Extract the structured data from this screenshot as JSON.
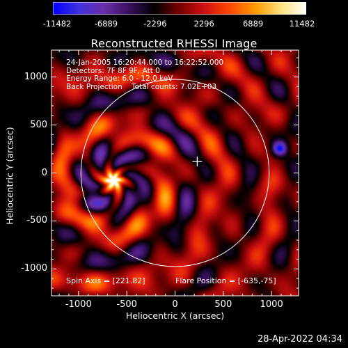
{
  "title": "Reconstructed RHESSI Image",
  "colorbar": {
    "ticks": [
      "-11482",
      "-6889",
      "-2296",
      "2296",
      "6889",
      "11482"
    ],
    "stops": [
      "#0000ff",
      "#4030e0",
      "#6a2fa8",
      "#3a1060",
      "#000000",
      "#7a0000",
      "#d01010",
      "#ff4a00",
      "#ff9a00",
      "#ffe27a",
      "#ffffff"
    ]
  },
  "info_lines": [
    "24-Jan-2005 16:20:44.000 to 16:22:52.000",
    "Detectors: 7F 8F 9F, Att 0",
    "Energy Range: 6.0 - 12.0 keV",
    "Back Projection    Total counts: 7.02E+03"
  ],
  "spin_axis": "Spin Axis = [221.82]",
  "flare_position": "Flare Position = [-635,-75]",
  "xlabel": "Heliocentric X (arcsec)",
  "ylabel": "Heliocentric Y (arcsec)",
  "x_ticks": [
    {
      "value": -1000,
      "label": "-1000"
    },
    {
      "value": -500,
      "label": "-500"
    },
    {
      "value": 0,
      "label": "0"
    },
    {
      "value": 500,
      "label": "500"
    },
    {
      "value": 1000,
      "label": "1000"
    }
  ],
  "y_ticks": [
    {
      "value": 1000,
      "label": "1000"
    },
    {
      "value": 500,
      "label": "500"
    },
    {
      "value": 0,
      "label": "0"
    },
    {
      "value": -500,
      "label": "-500"
    },
    {
      "value": -1000,
      "label": "-1000"
    }
  ],
  "timestamp": "28-Apr-2022 04:34",
  "sources": [
    {
      "x": -635,
      "y": -75,
      "kind": "bright-flare"
    },
    {
      "x": 1085,
      "y": 255,
      "kind": "negative-lobe"
    }
  ],
  "cross_marker": {
    "x": 230,
    "y": 120
  },
  "limb_circle": {
    "cx": 0,
    "cy": 0,
    "r": 975
  }
}
